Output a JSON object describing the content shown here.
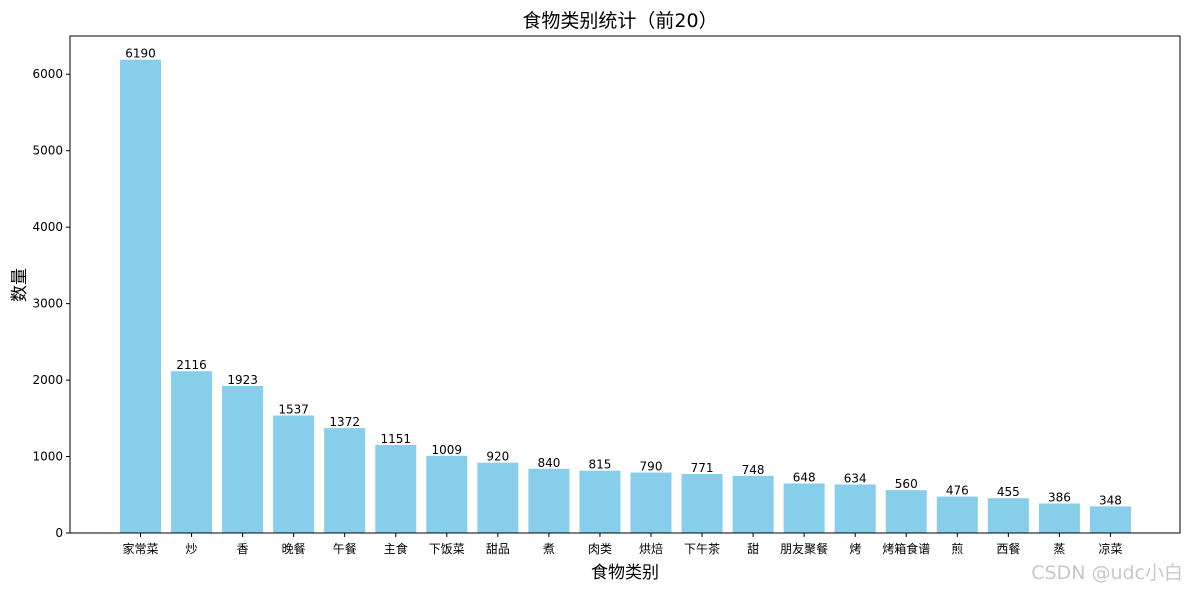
{
  "chart_data": {
    "type": "bar",
    "title": "食物类别统计（前20）",
    "xlabel": "食物类别",
    "ylabel": "数量",
    "categories": [
      "家常菜",
      "炒",
      "香",
      "晚餐",
      "午餐",
      "主食",
      "下饭菜",
      "甜品",
      "煮",
      "肉类",
      "烘焙",
      "下午茶",
      "甜",
      "朋友聚餐",
      "烤",
      "烤箱食谱",
      "煎",
      "西餐",
      "蒸",
      "凉菜"
    ],
    "values": [
      6190,
      2116,
      1923,
      1537,
      1372,
      1151,
      1009,
      920,
      840,
      815,
      790,
      771,
      748,
      648,
      634,
      560,
      476,
      455,
      386,
      348
    ],
    "value_labels": [
      "6190",
      "2116",
      "1923",
      "1537",
      "1372",
      "1151",
      "1009",
      "920",
      "840",
      "815",
      "790",
      "771",
      "748",
      "648",
      "634",
      "560",
      "476",
      "455",
      "386",
      "348"
    ],
    "y_ticks": [
      0,
      1000,
      2000,
      3000,
      4000,
      5000,
      6000
    ],
    "y_tick_labels": [
      "0",
      "1000",
      "2000",
      "3000",
      "4000",
      "5000",
      "6000"
    ],
    "ylim": [
      0,
      6500
    ],
    "grid": false,
    "legend": "none",
    "bar_color": "#87ceeb"
  },
  "watermark": "CSDN @udc小白"
}
